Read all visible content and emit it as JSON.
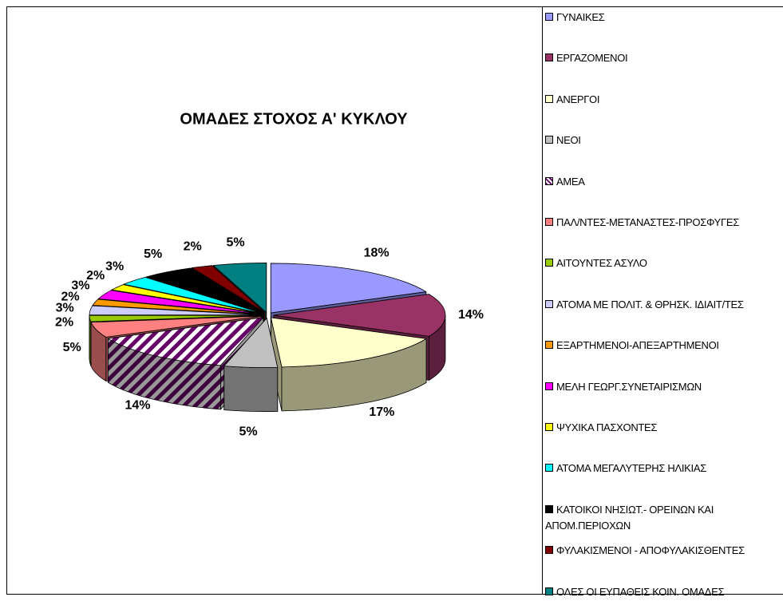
{
  "chart_data": {
    "type": "pie3d",
    "title": "ΟΜΑΔΕΣ ΣΤΟΧΟΣ Α' ΚΥΚΛΟΥ",
    "categories": [
      "ΓΥΝΑΙΚΕΣ",
      "ΕΡΓΑΖΟΜΕΝΟΙ",
      "ΑΝΕΡΓΟΙ",
      "ΝΕΟΙ",
      "ΑΜΕΑ",
      "ΠΑΛ/ΝΤΕΣ-ΜΕΤΑΝΑΣΤΕΣ-ΠΡΟΣΦΥΓΕΣ",
      "ΑΙΤΟΥΝΤΕΣ ΑΣΥΛΟ",
      "ΑΤΟΜΑ ΜΕ ΠΟΛΙΤ. & ΘΡΗΣΚ. ΙΔΙΑΙΤ/ΤΕΣ",
      "ΕΞΑΡΤΗΜΕΝΟΙ-ΑΠΕΞΑΡΤΗΜΕΝΟΙ",
      "ΜΕΛΗ ΓΕΩΡΓ.ΣΥΝΕΤΑΙΡΙΣΜΩΝ",
      "ΨΥΧΙΚΑ ΠΑΣΧΟΝΤΕΣ",
      "ΑΤΟΜΑ ΜΕΓΑΛΥΤΕΡΗΣ ΗΛΙΚΙΑΣ",
      "ΚΑΤΟΙΚΟΙ ΝΗΣΙΩΤ.- ΟΡΕΙΝΩΝ ΚΑΙ ΑΠΟΜ.ΠΕΡΙΟΧΩΝ",
      "ΦΥΛΑΚΙΣΜΕΝΟΙ - ΑΠΟΦΥΛΑΚΙΣΘΕΝΤΕΣ",
      "ΟΛΕΣ ΟΙ ΕΥΠΑΘΕΙΣ ΚΟΙΝ. ΟΜΑΔΕΣ"
    ],
    "values": [
      18,
      14,
      17,
      5,
      14,
      5,
      2,
      3,
      2,
      3,
      2,
      3,
      5,
      2,
      5
    ],
    "value_labels": [
      "18%",
      "14%",
      "17%",
      "5%",
      "14%",
      "5%",
      "2%",
      "3%",
      "2%",
      "3%",
      "2%",
      "3%",
      "5%",
      "2%",
      "5%"
    ],
    "colors": [
      "#9999ff",
      "#993366",
      "#ffffcc",
      "#c0c0c0",
      "#660066",
      "#ff8080",
      "#99cc00",
      "#ccccff",
      "#ff9900",
      "#ff00ff",
      "#ffff00",
      "#00ffff",
      "#000000",
      "#800000",
      "#008080"
    ],
    "hatched": [
      false,
      false,
      false,
      false,
      true,
      false,
      false,
      false,
      false,
      false,
      false,
      false,
      false,
      false,
      false
    ],
    "legend": "right"
  }
}
